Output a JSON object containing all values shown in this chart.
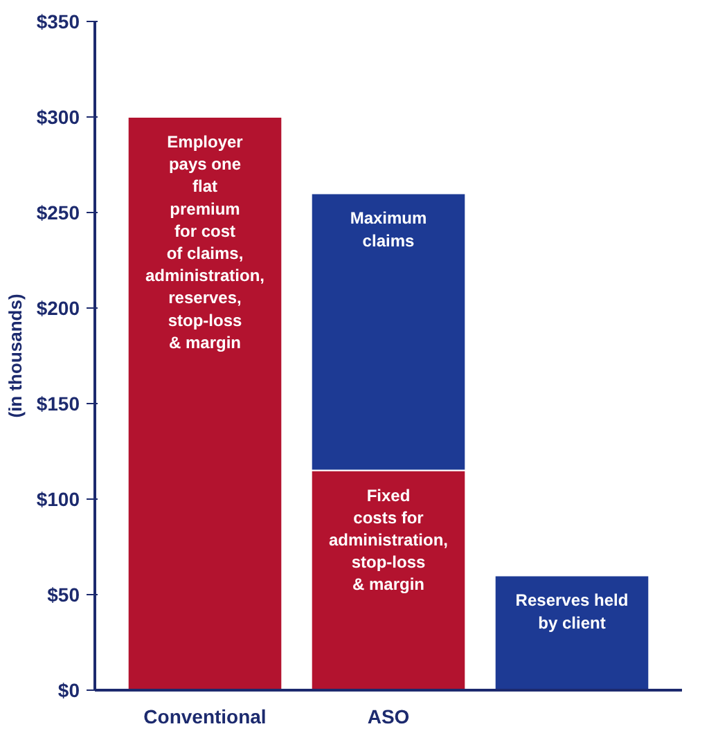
{
  "chart_data": {
    "type": "bar",
    "stacked": true,
    "ylabel": "(in thousands)",
    "categories": [
      "Conventional",
      "ASO",
      null
    ],
    "ylim": [
      0,
      350
    ],
    "yticks": [
      {
        "value": 0,
        "label": "$0"
      },
      {
        "value": 50,
        "label": "$50"
      },
      {
        "value": 100,
        "label": "$100"
      },
      {
        "value": 150,
        "label": "$150"
      },
      {
        "value": 200,
        "label": "$200"
      },
      {
        "value": 250,
        "label": "$250"
      },
      {
        "value": 300,
        "label": "$300"
      },
      {
        "value": 350,
        "label": "$350"
      }
    ],
    "grid": false,
    "series": [
      {
        "name": "Employer\npays one\nflat\npremium\nfor cost\nof claims,\nadministration,\nreserves,\nstop-loss\n& margin",
        "color": "#b3132f",
        "values": [
          300,
          null,
          null
        ]
      },
      {
        "name": "Fixed\ncosts for\nadministration,\nstop-loss\n& margin",
        "color": "#b3132f",
        "values": [
          null,
          115,
          null
        ]
      },
      {
        "name": "Maximum\nclaims",
        "color": "#1d3a94",
        "values": [
          null,
          145,
          null
        ]
      },
      {
        "name": "Reserves held\nby client",
        "color": "#1d3a94",
        "values": [
          null,
          null,
          60
        ]
      }
    ]
  }
}
